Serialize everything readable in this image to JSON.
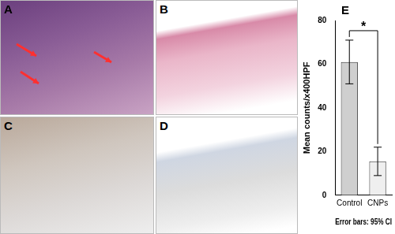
{
  "panel_labels": [
    "A",
    "B",
    "C",
    "D",
    "E"
  ],
  "chart_data": {
    "type": "bar",
    "categories": [
      "Control",
      "CNPs"
    ],
    "values": [
      61,
      15.5
    ],
    "error_low": [
      51,
      9
    ],
    "error_high": [
      71,
      22
    ],
    "colors": [
      "#cfcfcf",
      "#efefef"
    ],
    "y_label": "Mean counts/x400HPF",
    "x_label": "Error bars: 95% CI",
    "ylim": [
      0,
      80
    ],
    "yticks": [
      0,
      20,
      40,
      60,
      80
    ],
    "grid": false,
    "annotations": [
      {
        "text": "*",
        "from": "Control",
        "to": "CNPs"
      }
    ]
  }
}
